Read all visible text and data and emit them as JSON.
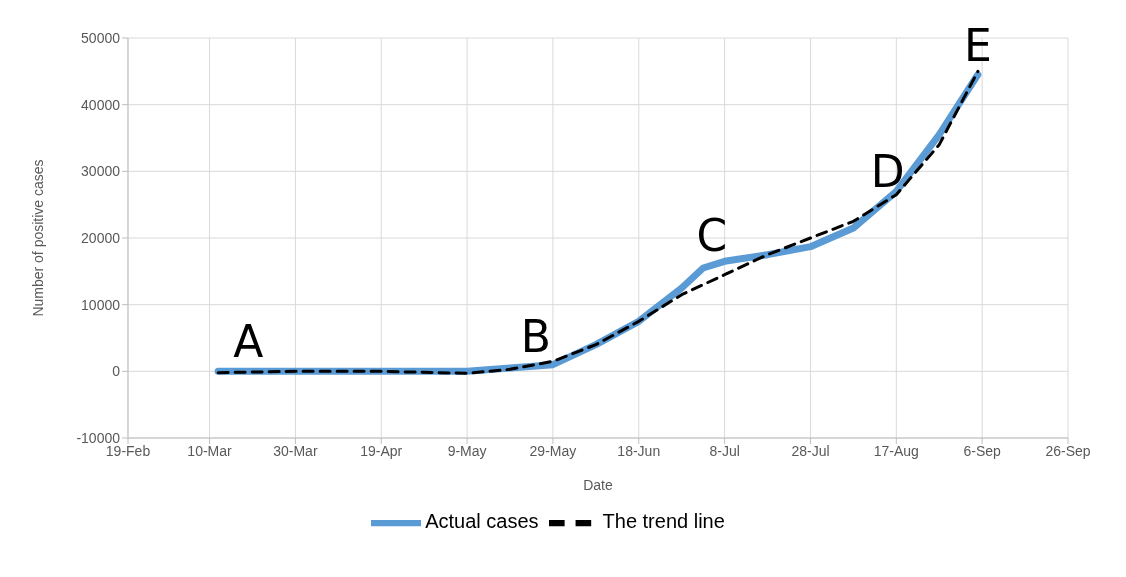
{
  "chart_data": {
    "type": "line",
    "xlabel": "Date",
    "ylabel": "Number of positive cases",
    "xlim": [
      "--02-19",
      "--09-26"
    ],
    "xticks": [
      {
        "value": "--02-19",
        "label": "19-Feb"
      },
      {
        "value": "--03-10",
        "label": "10-Mar"
      },
      {
        "value": "--03-30",
        "label": "30-Mar"
      },
      {
        "value": "--04-19",
        "label": "19-Apr"
      },
      {
        "value": "--05-09",
        "label": "9-May"
      },
      {
        "value": "--05-29",
        "label": "29-May"
      },
      {
        "value": "--06-18",
        "label": "18-Jun"
      },
      {
        "value": "--07-08",
        "label": "8-Jul"
      },
      {
        "value": "--07-28",
        "label": "28-Jul"
      },
      {
        "value": "--08-17",
        "label": "17-Aug"
      },
      {
        "value": "--09-06",
        "label": "6-Sep"
      },
      {
        "value": "--09-26",
        "label": "26-Sep"
      }
    ],
    "ylim": [
      -10000,
      50000
    ],
    "yticks": [
      -10000,
      0,
      10000,
      20000,
      30000,
      40000,
      50000
    ],
    "grid": true,
    "legend": "bottom",
    "series": [
      {
        "name": "Actual cases",
        "color": "#5b9bd5",
        "line_style": "solid",
        "x": [
          "--03-12",
          "--03-30",
          "--04-19",
          "--05-09",
          "--05-19",
          "--05-29",
          "--06-08",
          "--06-18",
          "--06-28",
          "--07-03",
          "--07-08",
          "--07-18",
          "--07-28",
          "--08-07",
          "--08-17",
          "--08-27",
          "--09-05"
        ],
        "values": [
          0,
          0,
          0,
          0,
          500,
          1000,
          4000,
          7500,
          12500,
          15500,
          16500,
          17500,
          18700,
          21500,
          27000,
          35500,
          44500
        ]
      },
      {
        "name": "The trend line",
        "color": "#000000",
        "line_style": "dashed",
        "x": [
          "--03-12",
          "--03-30",
          "--04-19",
          "--05-09",
          "--05-19",
          "--05-29",
          "--06-08",
          "--06-18",
          "--06-28",
          "--07-08",
          "--07-18",
          "--07-28",
          "--08-07",
          "--08-17",
          "--08-27",
          "--09-05"
        ],
        "values": [
          -200,
          0,
          0,
          -300,
          300,
          1500,
          4000,
          7500,
          11500,
          14500,
          17500,
          20000,
          22500,
          26500,
          34000,
          45000
        ]
      }
    ],
    "annotations": [
      {
        "text": "A",
        "x": "--03-19",
        "y": 0
      },
      {
        "text": "B",
        "x": "--05-25",
        "y": 800
      },
      {
        "text": "C",
        "x": "--07-05",
        "y": 16000
      },
      {
        "text": "D",
        "x": "--08-15",
        "y": 25500
      },
      {
        "text": "E",
        "x": "--09-05",
        "y": 44500
      }
    ]
  }
}
